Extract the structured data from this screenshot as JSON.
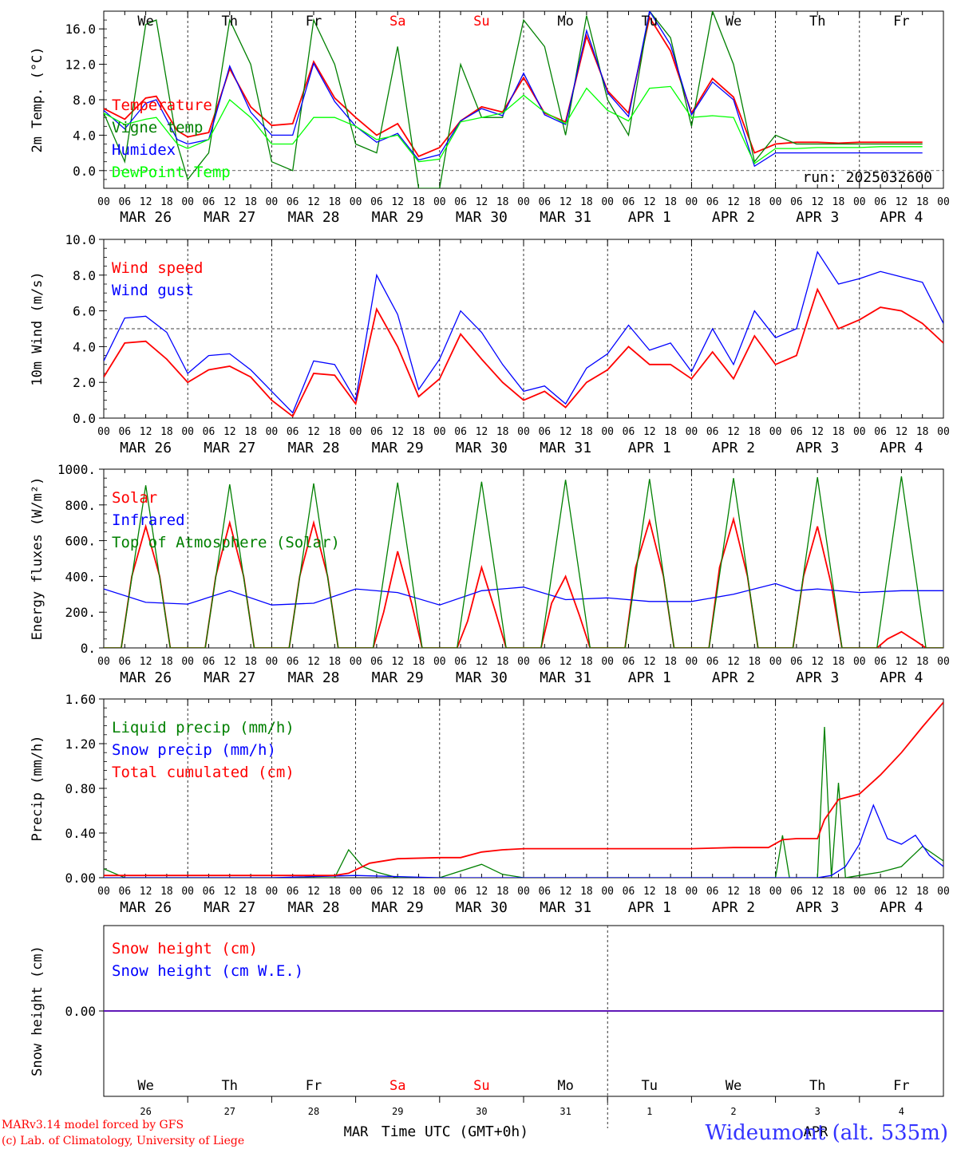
{
  "days": [
    "We",
    "Th",
    "Fr",
    "Sa",
    "Su",
    "Mo",
    "Tu",
    "We",
    "Th",
    "Fr"
  ],
  "weekend_color": "#ff0000",
  "weekday_color": "#000000",
  "dates": [
    "MAR 26",
    "MAR 27",
    "MAR 28",
    "MAR 29",
    "MAR 30",
    "MAR 31",
    "APR  1",
    "APR  2",
    "APR  3",
    "APR  4"
  ],
  "hour_ticks": [
    "00",
    "06",
    "12",
    "18"
  ],
  "bottom_day_numbers": [
    "26",
    "27",
    "28",
    "29",
    "30",
    "31",
    "1",
    "2",
    "3",
    "4"
  ],
  "bottom_months": [
    "MAR",
    "APR"
  ],
  "xlabel": "Time UTC (GMT+0h)",
  "footer": {
    "model": "MARv3.14 model forced by GFS",
    "lab": "(c) Lab. of Climatology, University of Liege",
    "station": "Wideumont (alt. 535m)"
  },
  "chart_data": [
    {
      "type": "line",
      "ylabel": "2m Temp. (°C)",
      "ylim": [
        -2,
        18
      ],
      "yticks": [
        "0.0",
        "4.0",
        "8.0",
        "12.0",
        "16.0"
      ],
      "run_label": "run: 2025032600",
      "x_unit": "hours since 2025-03-26 00 UTC",
      "series": [
        {
          "name": "Temperature",
          "color": "#ff0000",
          "x": [
            0,
            6,
            12,
            15,
            21,
            24,
            30,
            36,
            42,
            48,
            54,
            60,
            66,
            72,
            78,
            84,
            90,
            96,
            102,
            108,
            114,
            120,
            126,
            132,
            138,
            144,
            150,
            156,
            162,
            168,
            174,
            180,
            186,
            192,
            198,
            204,
            210,
            216,
            222,
            228,
            234
          ],
          "values": [
            7,
            5.8,
            8.2,
            8.4,
            4.5,
            3.8,
            4.3,
            11.5,
            7.2,
            5.1,
            5.3,
            12.3,
            8.2,
            6,
            4,
            5.3,
            1.6,
            2.6,
            5.6,
            7.2,
            6.6,
            10.5,
            6.5,
            5.5,
            15.2,
            9,
            6.5,
            17.3,
            13.5,
            6.5,
            10.4,
            8.3,
            2,
            3,
            3.2,
            3.2,
            3.1,
            3.2,
            3.2,
            3.2,
            3.2
          ]
        },
        {
          "name": "Vigne temp",
          "color": "#008000",
          "x": [
            0,
            6,
            12,
            15,
            21,
            24,
            30,
            36,
            42,
            48,
            54,
            60,
            66,
            72,
            78,
            84,
            90,
            96,
            102,
            108,
            114,
            120,
            126,
            132,
            138,
            144,
            150,
            156,
            162,
            168,
            174,
            180,
            186,
            192,
            198,
            204,
            210,
            216,
            222,
            228,
            234
          ],
          "values": [
            6.5,
            1,
            16.5,
            17,
            3,
            -1,
            2,
            17,
            12,
            1,
            0,
            17,
            12,
            3,
            2,
            14,
            -2,
            -2,
            12,
            6,
            6,
            17,
            14,
            4,
            17.5,
            8,
            4,
            18,
            15,
            5,
            18,
            12,
            1,
            4,
            3,
            3,
            3,
            3,
            3,
            3,
            3
          ]
        },
        {
          "name": "Humidex",
          "color": "#0000ff",
          "x": [
            0,
            6,
            12,
            15,
            21,
            24,
            30,
            36,
            42,
            48,
            54,
            60,
            66,
            72,
            78,
            84,
            90,
            96,
            102,
            108,
            114,
            120,
            126,
            132,
            138,
            144,
            150,
            156,
            162,
            168,
            174,
            180,
            186,
            192,
            198,
            204,
            210,
            216,
            222,
            228,
            234
          ],
          "values": [
            6.8,
            4.7,
            7.6,
            8,
            3.5,
            3,
            3.5,
            11.8,
            6.6,
            4,
            4,
            12.1,
            7.8,
            5,
            3.2,
            4.2,
            1.2,
            1.8,
            5.6,
            7,
            6.2,
            11,
            6.3,
            5.2,
            15.8,
            8.8,
            6.1,
            18,
            14.2,
            6.3,
            10,
            8,
            0.5,
            2,
            2,
            2,
            2,
            2,
            2,
            2,
            2
          ]
        },
        {
          "name": "DewPoint Temp",
          "color": "#00ff00",
          "x": [
            0,
            6,
            12,
            15,
            21,
            24,
            30,
            36,
            42,
            48,
            54,
            60,
            66,
            72,
            78,
            84,
            90,
            96,
            102,
            108,
            114,
            120,
            126,
            132,
            138,
            144,
            150,
            156,
            162,
            168,
            174,
            180,
            186,
            192,
            198,
            204,
            210,
            216,
            222,
            228,
            234
          ],
          "values": [
            6.5,
            5.2,
            5.8,
            6,
            3,
            2.5,
            3.5,
            8,
            6,
            3,
            3,
            6,
            6,
            5,
            3.5,
            4,
            1,
            1.3,
            5.5,
            6,
            6.5,
            8.5,
            6.6,
            5.3,
            9.3,
            6.8,
            5.6,
            9.3,
            9.5,
            6,
            6.2,
            6,
            0.8,
            2.5,
            2.5,
            2.6,
            2.6,
            2.6,
            2.7,
            2.7,
            2.7
          ]
        }
      ]
    },
    {
      "type": "line",
      "ylabel": "10m Wind (m/s)",
      "ylim": [
        0,
        10
      ],
      "yticks": [
        "0.0",
        "2.0",
        "4.0",
        "6.0",
        "8.0",
        "10.0"
      ],
      "series": [
        {
          "name": "Wind speed",
          "color": "#ff0000",
          "x": [
            0,
            6,
            12,
            18,
            24,
            30,
            36,
            42,
            48,
            54,
            60,
            66,
            72,
            78,
            84,
            90,
            96,
            102,
            108,
            114,
            120,
            126,
            132,
            138,
            144,
            150,
            156,
            162,
            168,
            174,
            180,
            186,
            192,
            198,
            204,
            210,
            216,
            222,
            228,
            234,
            240
          ],
          "values": [
            2.3,
            4.2,
            4.3,
            3.3,
            2,
            2.7,
            2.9,
            2.3,
            1,
            0.1,
            2.5,
            2.4,
            0.8,
            6.1,
            4,
            1.2,
            2.2,
            4.7,
            3.3,
            2,
            1,
            1.5,
            0.6,
            2,
            2.7,
            4,
            3,
            3,
            2.2,
            3.7,
            2.2,
            4.6,
            3,
            3.5,
            7.2,
            5,
            5.5,
            6.2,
            6,
            5.3,
            4.2
          ]
        },
        {
          "name": "Wind gust",
          "color": "#0000ff",
          "x": [
            0,
            6,
            12,
            18,
            24,
            30,
            36,
            42,
            48,
            54,
            60,
            66,
            72,
            78,
            84,
            90,
            96,
            102,
            108,
            114,
            120,
            126,
            132,
            138,
            144,
            150,
            156,
            162,
            168,
            174,
            180,
            186,
            192,
            198,
            204,
            210,
            216,
            222,
            228,
            234,
            240
          ],
          "values": [
            3.2,
            5.6,
            5.7,
            4.8,
            2.5,
            3.5,
            3.6,
            2.7,
            1.5,
            0.3,
            3.2,
            3,
            1,
            8,
            5.8,
            1.6,
            3.3,
            6,
            4.8,
            3,
            1.5,
            1.8,
            0.8,
            2.8,
            3.6,
            5.2,
            3.8,
            4.2,
            2.6,
            5,
            3,
            6,
            4.5,
            5,
            9.3,
            7.5,
            7.8,
            8.2,
            7.9,
            7.6,
            5.3
          ]
        }
      ]
    },
    {
      "type": "line",
      "ylabel": "Energy fluxes (W/m²)",
      "ylim": [
        0,
        1000
      ],
      "yticks": [
        "0.",
        "200.",
        "400.",
        "600.",
        "800.",
        "1000."
      ],
      "series": [
        {
          "name": "Solar",
          "color": "#ff0000",
          "x": [
            0,
            5,
            8,
            12,
            16,
            19,
            24,
            29,
            32,
            36,
            40,
            43,
            48,
            53,
            56,
            60,
            64,
            67,
            72,
            77,
            80,
            84,
            88,
            91,
            96,
            101,
            104,
            108,
            112,
            115,
            120,
            125,
            128,
            132,
            136,
            139,
            144,
            149,
            152,
            156,
            160,
            163,
            168,
            173,
            176,
            180,
            184,
            187,
            192,
            197,
            200,
            204,
            208,
            211,
            216,
            221,
            224,
            228,
            232,
            235,
            240
          ],
          "values": [
            0,
            0,
            400,
            680,
            400,
            0,
            0,
            0,
            400,
            700,
            400,
            0,
            0,
            0,
            400,
            700,
            400,
            0,
            0,
            0,
            200,
            540,
            250,
            0,
            0,
            0,
            150,
            450,
            200,
            0,
            0,
            0,
            250,
            400,
            180,
            0,
            0,
            0,
            450,
            710,
            400,
            0,
            0,
            0,
            450,
            720,
            400,
            0,
            0,
            0,
            400,
            680,
            350,
            0,
            0,
            0,
            50,
            90,
            40,
            0,
            0
          ]
        },
        {
          "name": "Infrared",
          "color": "#0000ff",
          "x": [
            0,
            12,
            24,
            36,
            48,
            60,
            72,
            84,
            96,
            108,
            120,
            132,
            144,
            156,
            168,
            180,
            192,
            198,
            204,
            216,
            228,
            240
          ],
          "values": [
            330,
            255,
            245,
            320,
            240,
            250,
            330,
            310,
            240,
            320,
            340,
            270,
            280,
            260,
            260,
            300,
            360,
            320,
            330,
            310,
            320,
            320
          ]
        },
        {
          "name": "Top of Atmosphere (Solar)",
          "color": "#008000",
          "x": [
            0,
            5,
            12,
            19,
            24,
            29,
            36,
            43,
            48,
            53,
            60,
            67,
            72,
            77,
            84,
            91,
            96,
            101,
            108,
            115,
            120,
            125,
            132,
            139,
            144,
            149,
            156,
            163,
            168,
            173,
            180,
            187,
            192,
            197,
            204,
            211,
            216,
            221,
            228,
            235,
            240
          ],
          "values": [
            0,
            0,
            910,
            0,
            0,
            0,
            915,
            0,
            0,
            0,
            920,
            0,
            0,
            0,
            925,
            0,
            0,
            0,
            930,
            0,
            0,
            0,
            940,
            0,
            0,
            0,
            945,
            0,
            0,
            0,
            950,
            0,
            0,
            0,
            955,
            0,
            0,
            0,
            960,
            0,
            0
          ]
        }
      ]
    },
    {
      "type": "line",
      "ylabel": "Precip (mm/h)",
      "ylim": [
        0,
        1.6
      ],
      "yticks": [
        "0.00",
        "0.40",
        "0.80",
        "1.20",
        "1.60"
      ],
      "series": [
        {
          "name": "Liquid precip (mm/h)",
          "color": "#008000",
          "x": [
            0,
            6,
            12,
            18,
            24,
            30,
            36,
            42,
            66,
            70,
            74,
            78,
            84,
            96,
            108,
            114,
            120,
            126,
            132,
            138,
            144,
            150,
            156,
            162,
            192,
            194,
            196,
            198,
            204,
            206,
            208,
            210,
            212,
            216,
            222,
            228,
            234,
            240
          ],
          "values": [
            0.08,
            0,
            0,
            0,
            0,
            0,
            0,
            0,
            0,
            0.25,
            0.1,
            0.05,
            0,
            0,
            0.12,
            0.03,
            0,
            0,
            0,
            0,
            0,
            0,
            0,
            0,
            0,
            0.38,
            0,
            0,
            0,
            1.35,
            0,
            0.85,
            0,
            0.02,
            0.05,
            0.1,
            0.28,
            0.15
          ]
        },
        {
          "name": "Snow precip (mm/h)",
          "color": "#0000ff",
          "x": [
            0,
            24,
            48,
            72,
            96,
            120,
            144,
            168,
            192,
            204,
            208,
            212,
            216,
            220,
            224,
            228,
            232,
            236,
            240
          ],
          "values": [
            0,
            0,
            0,
            0.02,
            0,
            0,
            0,
            0,
            0,
            0,
            0.02,
            0.1,
            0.3,
            0.65,
            0.35,
            0.3,
            0.38,
            0.2,
            0.1
          ]
        },
        {
          "name": "Total cumulated (cm)",
          "color": "#ff0000",
          "x": [
            0,
            24,
            48,
            66,
            70,
            76,
            84,
            96,
            102,
            108,
            114,
            120,
            132,
            144,
            156,
            168,
            180,
            190,
            194,
            198,
            204,
            206,
            210,
            216,
            222,
            228,
            234,
            240
          ],
          "values": [
            0.02,
            0.02,
            0.02,
            0.02,
            0.04,
            0.13,
            0.17,
            0.18,
            0.18,
            0.23,
            0.25,
            0.26,
            0.26,
            0.26,
            0.26,
            0.26,
            0.27,
            0.27,
            0.34,
            0.35,
            0.35,
            0.52,
            0.7,
            0.75,
            0.92,
            1.12,
            1.35,
            1.57
          ]
        }
      ]
    },
    {
      "type": "line",
      "ylabel": "Snow height (cm)",
      "ylim": [
        -1,
        1
      ],
      "yticks": [
        "0.00"
      ],
      "series": [
        {
          "name": "Snow height (cm)",
          "color": "#ff0000",
          "x": [
            0,
            240
          ],
          "values": [
            0,
            0
          ]
        },
        {
          "name": "Snow height (cm W.E.)",
          "color": "#0000ff",
          "x": [
            0,
            240
          ],
          "values": [
            0,
            0
          ]
        }
      ]
    }
  ]
}
